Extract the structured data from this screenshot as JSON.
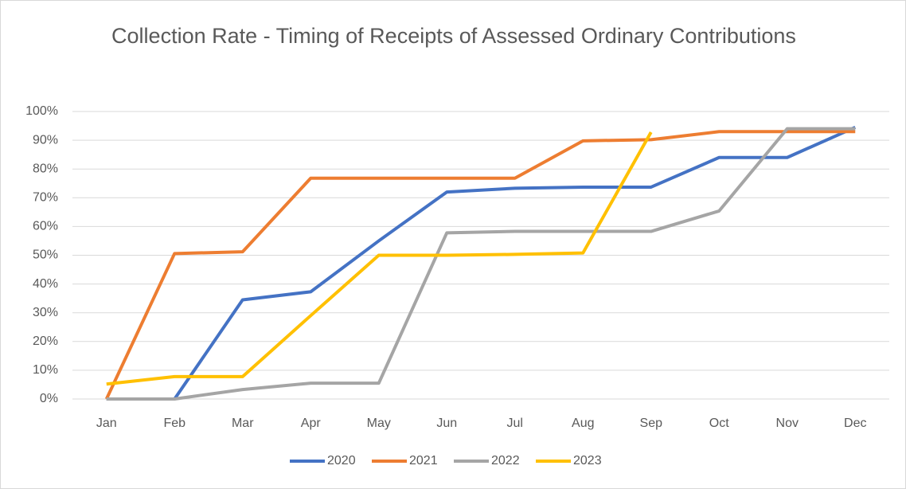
{
  "chart_data": {
    "type": "line",
    "title": "Collection Rate - Timing of Receipts of Assessed Ordinary Contributions",
    "categories": [
      "Jan",
      "Feb",
      "Mar",
      "Apr",
      "May",
      "Jun",
      "Jul",
      "Aug",
      "Sep",
      "Oct",
      "Nov",
      "Dec"
    ],
    "series": [
      {
        "name": "2020",
        "color": "#4472c4",
        "values": [
          0,
          0,
          34.5,
          37.3,
          55,
          72,
          73.3,
          73.7,
          73.7,
          84,
          84,
          94.5
        ]
      },
      {
        "name": "2021",
        "color": "#ed7d31",
        "values": [
          0,
          50.6,
          51.2,
          76.8,
          76.8,
          76.8,
          76.8,
          89.8,
          90.2,
          93,
          93,
          93
        ]
      },
      {
        "name": "2022",
        "color": "#a5a5a5",
        "values": [
          0,
          0,
          3.3,
          5.5,
          5.5,
          57.8,
          58.3,
          58.3,
          58.3,
          65.4,
          94,
          94
        ]
      },
      {
        "name": "2023",
        "color": "#ffc000",
        "values": [
          5.2,
          7.8,
          7.8,
          29,
          50,
          50,
          50.3,
          50.8,
          92.8,
          null,
          null,
          null
        ]
      }
    ],
    "ylim": [
      0,
      100
    ],
    "yticks": [
      {
        "value": 0,
        "label": "0%"
      },
      {
        "value": 10,
        "label": "10%"
      },
      {
        "value": 20,
        "label": "20%"
      },
      {
        "value": 30,
        "label": "30%"
      },
      {
        "value": 40,
        "label": "40%"
      },
      {
        "value": 50,
        "label": "50%"
      },
      {
        "value": 60,
        "label": "60%"
      },
      {
        "value": 70,
        "label": "70%"
      },
      {
        "value": 80,
        "label": "80%"
      },
      {
        "value": 90,
        "label": "90%"
      },
      {
        "value": 100,
        "label": "100%"
      }
    ],
    "grid": true,
    "legend": "bottom"
  }
}
